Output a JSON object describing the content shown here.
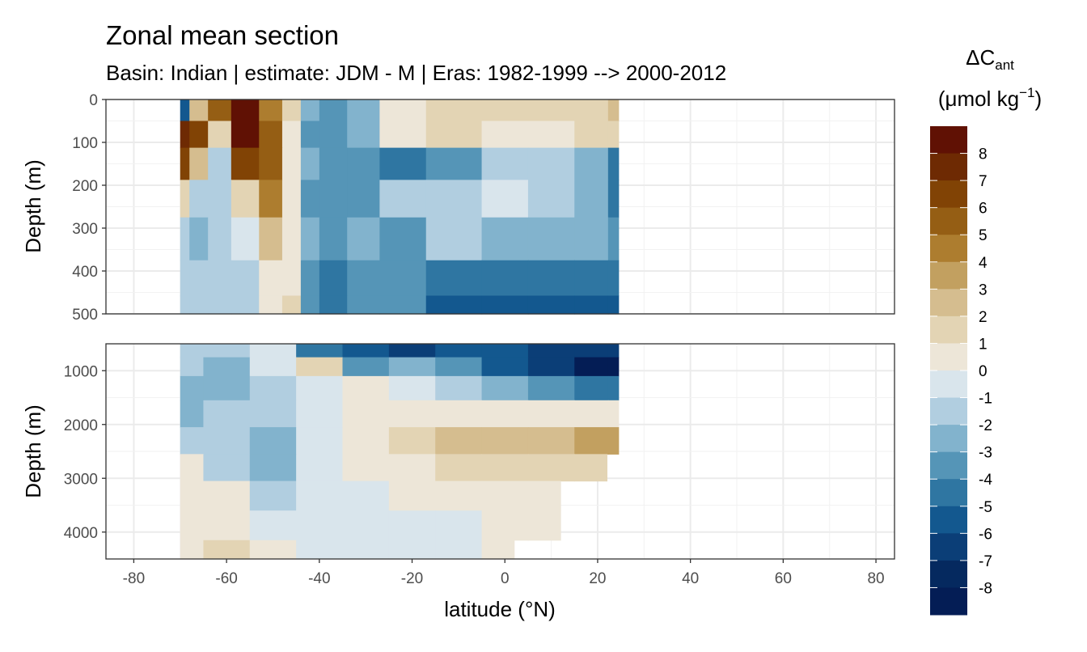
{
  "chart_data": {
    "type": "heatmap",
    "title": "Zonal mean section",
    "subtitle": "Basin: Indian | estimate: JDM - M | Eras: 1982-1999 --> 2000-2012",
    "xlabel": "latitude (°N)",
    "ylabel": "Depth (m)",
    "xlim": [
      -86,
      84
    ],
    "x_ticks": [
      -80,
      -60,
      -40,
      -20,
      0,
      20,
      40,
      60,
      80
    ],
    "x_tick_labels": [
      "-80",
      "-60",
      "-40",
      "-20",
      "0",
      "20",
      "40",
      "60",
      "80"
    ],
    "grid": true,
    "panels": [
      {
        "name": "upper",
        "ylim": [
          500,
          0
        ],
        "y_ticks": [
          0,
          100,
          200,
          300,
          400,
          500
        ],
        "y_tick_labels": [
          "0",
          "100",
          "200",
          "300",
          "400",
          "500"
        ],
        "data_lat_range": [
          -70,
          24.5
        ],
        "rows": [
          {
            "depth": 25,
            "values": [
              [
                "-70",
                -5
              ],
              [
                "-66",
                3
              ],
              [
                "-62",
                6
              ],
              [
                "-56",
                9
              ],
              [
                "-50",
                5
              ],
              [
                "-46",
                2
              ],
              [
                "-42",
                -2
              ],
              [
                "-38",
                -3
              ],
              [
                "-30",
                -2
              ],
              [
                "-24",
                1
              ],
              [
                "-10",
                1.5
              ],
              [
                "0",
                1.5
              ],
              [
                "10",
                1.5
              ],
              [
                "20",
                2
              ],
              [
                "24.5",
                3
              ]
            ]
          },
          {
            "depth": 75,
            "values": [
              [
                "-70",
                8
              ],
              [
                "-66",
                7
              ],
              [
                "-62",
                2
              ],
              [
                "-56",
                9
              ],
              [
                "-50",
                6
              ],
              [
                "-46",
                1
              ],
              [
                "-42",
                -3
              ],
              [
                "-38",
                -3
              ],
              [
                "-30",
                -2
              ],
              [
                "-24",
                1
              ],
              [
                "-10",
                1.5
              ],
              [
                "0",
                1
              ],
              [
                "10",
                1
              ],
              [
                "20",
                1.5
              ],
              [
                "24.5",
                2
              ]
            ]
          },
          {
            "depth": 150,
            "values": [
              [
                "-70",
                7
              ],
              [
                "-66",
                3
              ],
              [
                "-62",
                -1
              ],
              [
                "-56",
                7
              ],
              [
                "-50",
                6
              ],
              [
                "-46",
                1
              ],
              [
                "-42",
                -2
              ],
              [
                "-38",
                -3
              ],
              [
                "-30",
                -3
              ],
              [
                "-24",
                -4
              ],
              [
                "-10",
                -3
              ],
              [
                "0",
                -1
              ],
              [
                "10",
                -1
              ],
              [
                "20",
                -2
              ],
              [
                "24.5",
                -4
              ]
            ]
          },
          {
            "depth": 225,
            "values": [
              [
                "-70",
                2
              ],
              [
                "-66",
                -1
              ],
              [
                "-62",
                -1
              ],
              [
                "-56",
                2
              ],
              [
                "-50",
                5
              ],
              [
                "-46",
                1
              ],
              [
                "-42",
                -3
              ],
              [
                "-38",
                -3
              ],
              [
                "-30",
                -3
              ],
              [
                "-24",
                -1
              ],
              [
                "-10",
                -1
              ],
              [
                "0",
                0
              ],
              [
                "10",
                -1
              ],
              [
                "20",
                -2
              ],
              [
                "24.5",
                -4
              ]
            ]
          },
          {
            "depth": 325,
            "values": [
              [
                "-70",
                -1
              ],
              [
                "-66",
                -2
              ],
              [
                "-62",
                -1
              ],
              [
                "-56",
                0
              ],
              [
                "-50",
                3
              ],
              [
                "-46",
                1
              ],
              [
                "-42",
                -2
              ],
              [
                "-38",
                -3
              ],
              [
                "-30",
                -2
              ],
              [
                "-24",
                -3
              ],
              [
                "-10",
                -1
              ],
              [
                "0",
                -2
              ],
              [
                "10",
                -2
              ],
              [
                "20",
                -2
              ],
              [
                "24.5",
                -3
              ]
            ]
          },
          {
            "depth": 425,
            "values": [
              [
                "-70",
                -1
              ],
              [
                "-66",
                -1
              ],
              [
                "-62",
                -1
              ],
              [
                "-56",
                -1
              ],
              [
                "-50",
                1
              ],
              [
                "-46",
                1
              ],
              [
                "-42",
                -3
              ],
              [
                "-38",
                -4
              ],
              [
                "-30",
                -3
              ],
              [
                "-24",
                -3
              ],
              [
                "-10",
                -4
              ],
              [
                "0",
                -4
              ],
              [
                "10",
                -4
              ],
              [
                "20",
                -4
              ],
              [
                "24.5",
                -4
              ]
            ]
          },
          {
            "depth": 490,
            "values": [
              [
                "-70",
                -1
              ],
              [
                "-66",
                -1
              ],
              [
                "-62",
                -1
              ],
              [
                "-56",
                -1
              ],
              [
                "-50",
                1
              ],
              [
                "-46",
                2
              ],
              [
                "-42",
                -3
              ],
              [
                "-38",
                -4
              ],
              [
                "-30",
                -3
              ],
              [
                "-24",
                -3
              ],
              [
                "-10",
                -5
              ],
              [
                "0",
                -5
              ],
              [
                "10",
                -5
              ],
              [
                "20",
                -5
              ],
              [
                "24.5",
                -5
              ]
            ]
          }
        ]
      },
      {
        "name": "lower",
        "ylim": [
          4500,
          500
        ],
        "y_ticks": [
          1000,
          2000,
          3000,
          4000
        ],
        "y_tick_labels": [
          "1000",
          "2000",
          "3000",
          "4000"
        ],
        "data_lat_range": [
          -70,
          24.5
        ],
        "rows": [
          {
            "depth": 600,
            "values": [
              [
                "-70",
                -1
              ],
              [
                "-60",
                -1
              ],
              [
                "-50",
                0
              ],
              [
                "-40",
                -4
              ],
              [
                "-30",
                -5
              ],
              [
                "-20",
                -6
              ],
              [
                "-10",
                -5
              ],
              [
                "0",
                -5
              ],
              [
                "10",
                -6
              ],
              [
                "20",
                -6
              ],
              [
                "24.5",
                -6
              ]
            ]
          },
          {
            "depth": 900,
            "values": [
              [
                "-70",
                -1
              ],
              [
                "-60",
                -2
              ],
              [
                "-50",
                0
              ],
              [
                "-40",
                2
              ],
              [
                "-30",
                -3
              ],
              [
                "-20",
                -2
              ],
              [
                "-10",
                -3
              ],
              [
                "0",
                -5
              ],
              [
                "10",
                -6
              ],
              [
                "20",
                -8
              ],
              [
                "24.5",
                -8
              ]
            ]
          },
          {
            "depth": 1300,
            "values": [
              [
                "-70",
                -2
              ],
              [
                "-60",
                -2
              ],
              [
                "-50",
                -1
              ],
              [
                "-40",
                0
              ],
              [
                "-30",
                1
              ],
              [
                "-20",
                0
              ],
              [
                "-10",
                -1
              ],
              [
                "0",
                -2
              ],
              [
                "10",
                -3
              ],
              [
                "20",
                -4
              ],
              [
                "24.5",
                -4
              ]
            ]
          },
          {
            "depth": 1800,
            "values": [
              [
                "-70",
                -2
              ],
              [
                "-60",
                -1
              ],
              [
                "-50",
                -1
              ],
              [
                "-40",
                0
              ],
              [
                "-30",
                1
              ],
              [
                "-20",
                1
              ],
              [
                "-10",
                1
              ],
              [
                "0",
                1
              ],
              [
                "10",
                1
              ],
              [
                "20",
                1
              ],
              [
                "24.5",
                1
              ]
            ]
          },
          {
            "depth": 2300,
            "values": [
              [
                "-70",
                -1
              ],
              [
                "-60",
                -1
              ],
              [
                "-50",
                -2
              ],
              [
                "-40",
                0
              ],
              [
                "-30",
                1
              ],
              [
                "-20",
                2
              ],
              [
                "-10",
                3
              ],
              [
                "0",
                3
              ],
              [
                "10",
                3
              ],
              [
                "20",
                4
              ],
              [
                "24.5",
                4
              ]
            ]
          },
          {
            "depth": 2800,
            "values": [
              [
                "-70",
                1
              ],
              [
                "-60",
                -1
              ],
              [
                "-50",
                -2
              ],
              [
                "-40",
                0
              ],
              [
                "-30",
                1
              ],
              [
                "-20",
                1
              ],
              [
                "-10",
                2
              ],
              [
                "0",
                2
              ],
              [
                "10",
                2
              ],
              [
                "20",
                2
              ]
            ]
          },
          {
            "depth": 3300,
            "values": [
              [
                "-70",
                1
              ],
              [
                "-60",
                1
              ],
              [
                "-50",
                -1
              ],
              [
                "-40",
                0
              ],
              [
                "-30",
                0
              ],
              [
                "-20",
                1
              ],
              [
                "-10",
                1
              ],
              [
                "0",
                1
              ],
              [
                "10",
                1
              ]
            ]
          },
          {
            "depth": 3900,
            "values": [
              [
                "-70",
                1
              ],
              [
                "-60",
                1
              ],
              [
                "-50",
                0
              ],
              [
                "-40",
                0
              ],
              [
                "-30",
                0
              ],
              [
                "-20",
                0
              ],
              [
                "-10",
                0
              ],
              [
                "0",
                1
              ],
              [
                "10",
                1
              ]
            ]
          },
          {
            "depth": 4400,
            "values": [
              [
                "-70",
                1
              ],
              [
                "-60",
                2
              ],
              [
                "-50",
                1
              ],
              [
                "-40",
                0
              ],
              [
                "-30",
                0
              ],
              [
                "-20",
                0
              ],
              [
                "-10",
                0
              ],
              [
                "0",
                1
              ]
            ]
          }
        ]
      }
    ],
    "legend": {
      "placement": "right",
      "title_main": "ΔC",
      "title_sub": "ant",
      "title_unit_prefix": "(μmol kg",
      "title_unit_sup": "−1",
      "title_unit_suffix": ")",
      "labels": [
        "8",
        "7",
        "6",
        "5",
        "4",
        "3",
        "2",
        "1",
        "0",
        "-1",
        "-2",
        "-3",
        "-4",
        "-5",
        "-6",
        "-7",
        "-8"
      ],
      "colors": [
        "#601104",
        "#6e2a03",
        "#814305",
        "#955e14",
        "#ad7d2f",
        "#c2a060",
        "#d5bd8f",
        "#e3d4b4",
        "#ede6d8",
        "#d9e5ec",
        "#b1cee0",
        "#82b3cd",
        "#5595b7",
        "#2f76a2",
        "#13588f",
        "#0b3e77",
        "#05295f",
        "#041d55"
      ],
      "break_values": [
        9,
        8,
        7,
        6,
        5,
        4,
        3,
        2,
        1,
        0,
        -1,
        -2,
        -3,
        -4,
        -5,
        -6,
        -7,
        -8,
        -9
      ]
    }
  }
}
